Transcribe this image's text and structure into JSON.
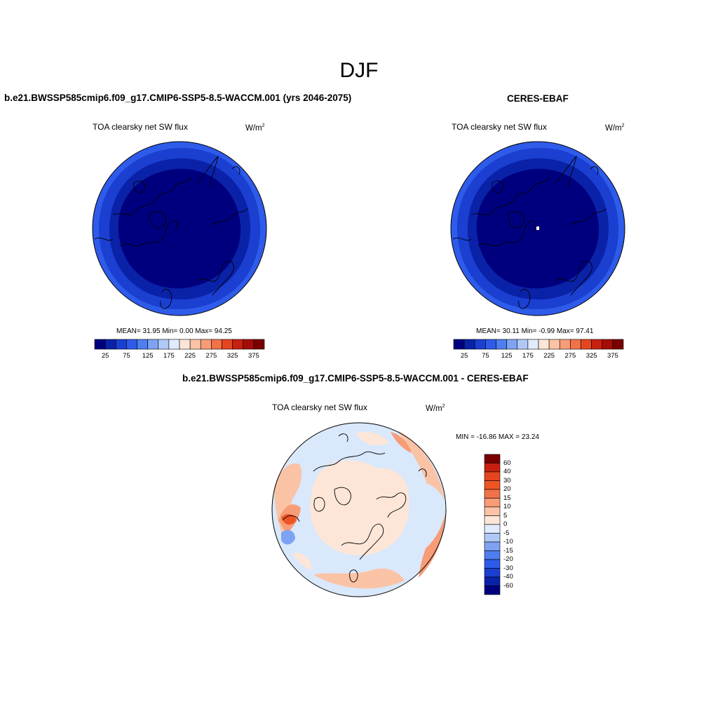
{
  "figure": {
    "title": "DJF"
  },
  "panels": {
    "model": {
      "title": "b.e21.BWSSP585cmip6.f09_g17.CMIP6-SSP5-8.5-WACCM.001 (yrs 2046-2075)",
      "variable": "TOA clearsky net SW flux",
      "units": "W/m",
      "units_sup": "2",
      "stats": "MEAN=  31.95  Min=   0.00  Max=  94.25"
    },
    "obs": {
      "title": "CERES-EBAF",
      "variable": "TOA clearsky net SW flux",
      "units": "W/m",
      "units_sup": "2",
      "stats": "MEAN=  30.11  Min=  -0.99  Max=  97.41"
    },
    "diff": {
      "title": "b.e21.BWSSP585cmip6.f09_g17.CMIP6-SSP5-8.5-WACCM.001 - CERES-EBAF",
      "variable": "TOA clearsky net SW flux",
      "units": "W/m",
      "units_sup": "2",
      "stats": "MIN = -16.86 MAX =  23.24"
    }
  },
  "colorbars": {
    "field": {
      "colors": [
        "#00007f",
        "#0a22a8",
        "#1a3fd1",
        "#2e5bea",
        "#4f7ef0",
        "#7ea3f2",
        "#b0c8f6",
        "#e0ebfb",
        "#fde6d8",
        "#fbc3a6",
        "#f79c77",
        "#f17148",
        "#e5461f",
        "#c72010",
        "#a40d06",
        "#7a0000"
      ],
      "tick_labels": [
        "25",
        "75",
        "125",
        "175",
        "225",
        "275",
        "325",
        "375"
      ]
    },
    "diff": {
      "colors": [
        "#00007f",
        "#0a22a8",
        "#1a3fd1",
        "#2e5bea",
        "#4f7ef0",
        "#7ea3f2",
        "#b0c8f6",
        "#e0ebfb",
        "#fde6d8",
        "#fbc3a6",
        "#f79c77",
        "#f17148",
        "#ee5524",
        "#e5461f",
        "#c72010",
        "#7a0000"
      ],
      "tick_labels": [
        "60",
        "40",
        "30",
        "20",
        "15",
        "10",
        "5",
        "0",
        "-5",
        "-10",
        "-15",
        "-20",
        "-30",
        "-40",
        "-60"
      ]
    }
  },
  "map_colors": {
    "field_outer": "#2e5bea",
    "field_mid": "#1a3fd1",
    "field_inner": "#0a22a8",
    "field_core": "#00007f",
    "diff_ocean": "#d9e8fb",
    "diff_land": "#fde6d8",
    "diff_pos1": "#fbc3a6",
    "diff_pos2": "#f79c77",
    "diff_pos3": "#ee5524",
    "diff_neg": "#7ea3f2"
  }
}
